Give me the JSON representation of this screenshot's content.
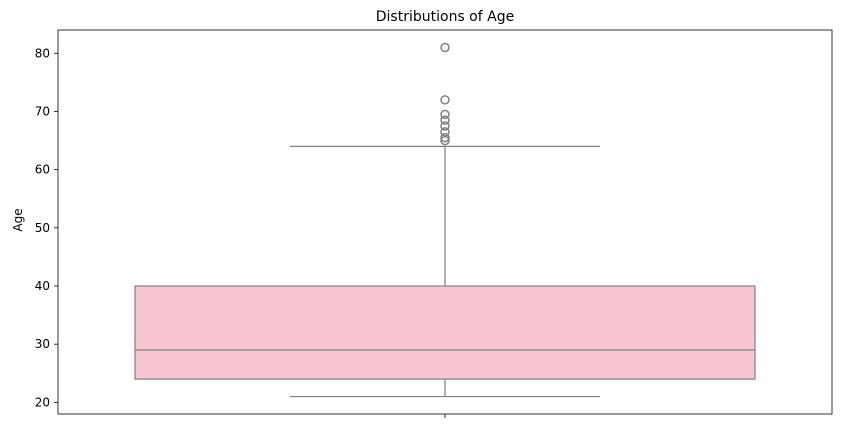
{
  "chart_data": {
    "type": "box",
    "title": "Distributions of Age",
    "xlabel": "",
    "ylabel": "Age",
    "ylim": [
      18,
      84
    ],
    "yticks": [
      20,
      30,
      40,
      50,
      60,
      70,
      80
    ],
    "grid": false,
    "legend": "none",
    "box": {
      "fill_color": "#f7c6d0",
      "line_color": "#808080",
      "whisker_low": 21,
      "q1": 24,
      "median": 29,
      "q3": 40,
      "whisker_high": 64,
      "outliers": [
        65,
        65.5,
        66.5,
        67.5,
        68.5,
        69.5,
        72,
        81
      ]
    }
  }
}
